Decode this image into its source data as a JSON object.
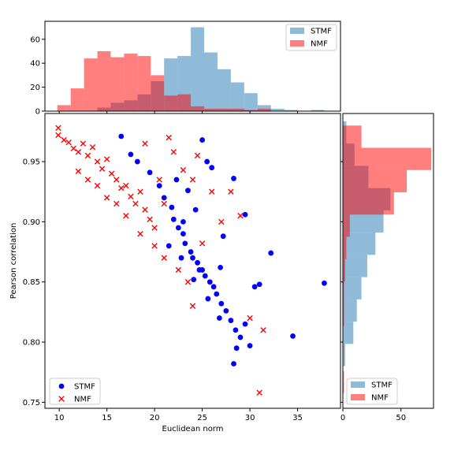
{
  "chart_data": {
    "type": "scatter",
    "xlabel": "Euclidean norm",
    "ylabel": "Pearson correlation",
    "xlim": [
      8.5,
      39.5
    ],
    "ylim": [
      0.745,
      0.99
    ],
    "xticks": [
      10,
      15,
      20,
      25,
      30,
      35
    ],
    "yticks": [
      0.75,
      0.8,
      0.85,
      0.9,
      0.95
    ],
    "legend_position": "lower-left",
    "series": [
      {
        "name": "STMF",
        "marker": "circle",
        "color": "#0000ff",
        "points_sample": [
          [
            16.5,
            0.971
          ],
          [
            17.5,
            0.956
          ],
          [
            18.2,
            0.95
          ],
          [
            19.5,
            0.941
          ],
          [
            20.5,
            0.93
          ],
          [
            21.0,
            0.92
          ],
          [
            21.8,
            0.912
          ],
          [
            22.0,
            0.902
          ],
          [
            22.5,
            0.895
          ],
          [
            23.0,
            0.89
          ],
          [
            23.2,
            0.882
          ],
          [
            23.8,
            0.875
          ],
          [
            24.0,
            0.87
          ],
          [
            24.5,
            0.866
          ],
          [
            25.0,
            0.86
          ],
          [
            25.3,
            0.855
          ],
          [
            25.8,
            0.85
          ],
          [
            26.2,
            0.846
          ],
          [
            26.5,
            0.84
          ],
          [
            27.0,
            0.832
          ],
          [
            27.5,
            0.826
          ],
          [
            28.0,
            0.818
          ],
          [
            28.5,
            0.81
          ],
          [
            29.0,
            0.804
          ],
          [
            29.5,
            0.815
          ],
          [
            30.0,
            0.797
          ],
          [
            30.5,
            0.846
          ],
          [
            31.0,
            0.848
          ],
          [
            32.2,
            0.874
          ],
          [
            34.5,
            0.805
          ],
          [
            37.8,
            0.849
          ],
          [
            28.3,
            0.782
          ],
          [
            25.0,
            0.968
          ],
          [
            25.5,
            0.95
          ],
          [
            28.3,
            0.936
          ],
          [
            29.5,
            0.906
          ],
          [
            26.0,
            0.945
          ],
          [
            24.3,
            0.91
          ],
          [
            27.2,
            0.888
          ],
          [
            22.3,
            0.935
          ],
          [
            23.5,
            0.926
          ],
          [
            24.7,
            0.86
          ],
          [
            26.8,
            0.82
          ],
          [
            28.6,
            0.795
          ],
          [
            21.5,
            0.88
          ],
          [
            22.8,
            0.87
          ],
          [
            25.6,
            0.836
          ],
          [
            26.9,
            0.862
          ],
          [
            24.1,
            0.852
          ],
          [
            23.0,
            0.9
          ]
        ]
      },
      {
        "name": "NMF",
        "marker": "x",
        "color": "#ff0000",
        "points_sample": [
          [
            9.9,
            0.978
          ],
          [
            9.9,
            0.972
          ],
          [
            10.5,
            0.968
          ],
          [
            11.0,
            0.966
          ],
          [
            11.5,
            0.961
          ],
          [
            12.0,
            0.958
          ],
          [
            12.5,
            0.965
          ],
          [
            13.0,
            0.955
          ],
          [
            13.5,
            0.962
          ],
          [
            14.0,
            0.95
          ],
          [
            14.5,
            0.944
          ],
          [
            15.0,
            0.952
          ],
          [
            15.5,
            0.94
          ],
          [
            16.0,
            0.935
          ],
          [
            16.5,
            0.928
          ],
          [
            17.0,
            0.93
          ],
          [
            17.5,
            0.921
          ],
          [
            18.0,
            0.915
          ],
          [
            18.5,
            0.925
          ],
          [
            19.0,
            0.91
          ],
          [
            19.5,
            0.902
          ],
          [
            20.0,
            0.895
          ],
          [
            20.5,
            0.935
          ],
          [
            21.0,
            0.915
          ],
          [
            21.5,
            0.97
          ],
          [
            22.0,
            0.958
          ],
          [
            23.0,
            0.943
          ],
          [
            24.0,
            0.935
          ],
          [
            24.5,
            0.955
          ],
          [
            25.0,
            0.882
          ],
          [
            26.0,
            0.925
          ],
          [
            27.0,
            0.9
          ],
          [
            28.0,
            0.925
          ],
          [
            29.0,
            0.905
          ],
          [
            30.0,
            0.82
          ],
          [
            31.4,
            0.81
          ],
          [
            31.0,
            0.758
          ],
          [
            24.0,
            0.83
          ],
          [
            12.0,
            0.942
          ],
          [
            13.0,
            0.935
          ],
          [
            14.0,
            0.93
          ],
          [
            15.0,
            0.92
          ],
          [
            16.0,
            0.915
          ],
          [
            17.0,
            0.905
          ],
          [
            18.5,
            0.89
          ],
          [
            20.0,
            0.88
          ],
          [
            21.0,
            0.87
          ],
          [
            22.5,
            0.86
          ],
          [
            23.5,
            0.85
          ],
          [
            19.0,
            0.965
          ]
        ]
      }
    ],
    "x_histogram": {
      "ylim": [
        0,
        75
      ],
      "yticks": [
        0,
        20,
        40,
        60
      ],
      "bin_width": 1.4,
      "series": [
        {
          "name": "STMF",
          "color": "#1f77b4",
          "bins_start": [
            14.0,
            15.4,
            16.8,
            18.2,
            19.6,
            21.0,
            22.4,
            23.8,
            25.2,
            26.6,
            28.0,
            29.4,
            30.8,
            32.2,
            33.6,
            35.0,
            36.4
          ],
          "counts": [
            3,
            7,
            9,
            14,
            25,
            44,
            46,
            70,
            49,
            35,
            24,
            15,
            5,
            2,
            1,
            0,
            1
          ]
        },
        {
          "name": "NMF",
          "color": "#ff0000",
          "bins_start": [
            9.8,
            11.2,
            12.6,
            14.0,
            15.4,
            16.8,
            18.2,
            19.6,
            21.0,
            22.4,
            23.8,
            25.2,
            26.6,
            28.0,
            29.4,
            30.8
          ],
          "counts": [
            5,
            19,
            44,
            50,
            45,
            48,
            46,
            30,
            13,
            14,
            4,
            2,
            2,
            2,
            1,
            2
          ]
        }
      ]
    },
    "y_histogram": {
      "xlim": [
        0,
        78
      ],
      "xticks": [
        0,
        50
      ],
      "bin_height": 0.0185,
      "series": [
        {
          "name": "STMF",
          "color": "#1f77b4",
          "bins_start": [
            0.78,
            0.7985,
            0.817,
            0.8355,
            0.854,
            0.8725,
            0.891,
            0.9095,
            0.928,
            0.9465,
            0.965
          ],
          "counts": [
            2,
            9,
            12,
            16,
            21,
            28,
            35,
            41,
            22,
            10,
            3
          ]
        },
        {
          "name": "NMF",
          "color": "#ff0000",
          "bins_start": [
            0.7575,
            0.8135,
            0.832,
            0.8505,
            0.869,
            0.8875,
            0.906,
            0.9245,
            0.943,
            0.9615
          ],
          "counts": [
            1,
            1,
            1,
            2,
            3,
            6,
            44,
            55,
            76,
            16
          ]
        }
      ]
    }
  }
}
